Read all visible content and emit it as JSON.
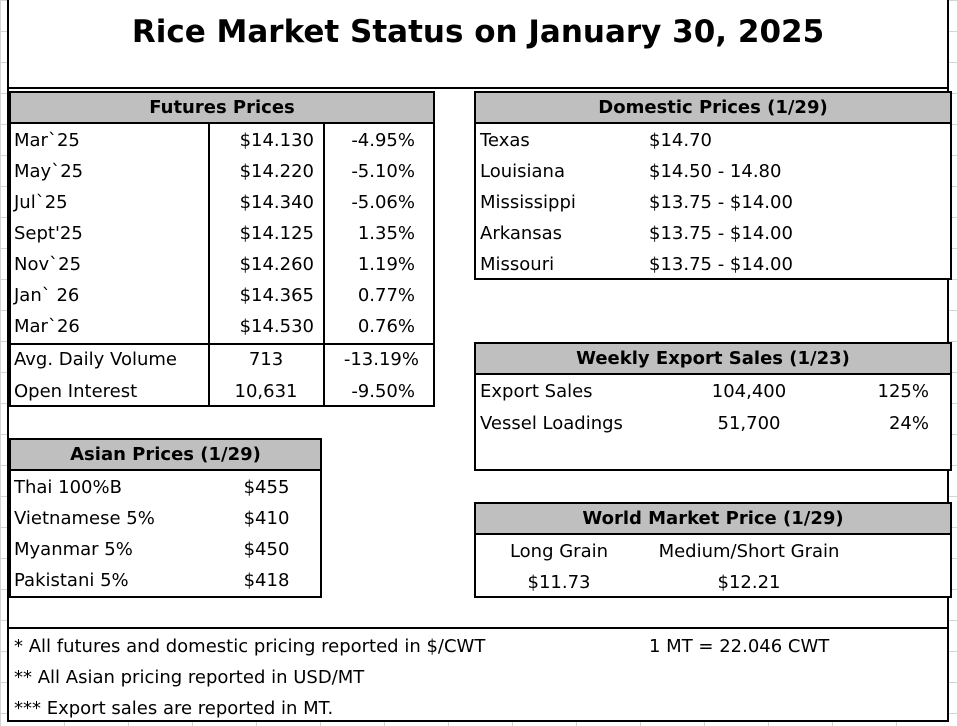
{
  "title": "Rice Market Status on January 30, 2025",
  "futures": {
    "header": "Futures Prices",
    "rows": [
      {
        "month": "Mar`25",
        "price": "$14.130",
        "change": "-4.95%"
      },
      {
        "month": "May`25",
        "price": "$14.220",
        "change": "-5.10%"
      },
      {
        "month": "Jul`25",
        "price": "$14.340",
        "change": "-5.06%"
      },
      {
        "month": "Sept'25",
        "price": "$14.125",
        "change": "1.35%"
      },
      {
        "month": "Nov`25",
        "price": "$14.260",
        "change": "1.19%"
      },
      {
        "month": "Jan` 26",
        "price": "$14.365",
        "change": "0.77%"
      },
      {
        "month": "Mar`26",
        "price": "$14.530",
        "change": "0.76%"
      }
    ],
    "volume": {
      "label": "Avg. Daily Volume",
      "value": "713",
      "change": "-13.19%"
    },
    "open_interest": {
      "label": "Open Interest",
      "value": "10,631",
      "change": "-9.50%"
    }
  },
  "domestic": {
    "header": "Domestic Prices (1/29)",
    "rows": [
      {
        "state": "Texas",
        "price": "$14.70"
      },
      {
        "state": "Louisiana",
        "price": "$14.50 - 14.80"
      },
      {
        "state": "Mississippi",
        "price": "$13.75 - $14.00"
      },
      {
        "state": "Arkansas",
        "price": "$13.75 - $14.00"
      },
      {
        "state": "Missouri",
        "price": "$13.75 - $14.00"
      }
    ]
  },
  "export": {
    "header": "Weekly Export Sales (1/23)",
    "rows": [
      {
        "label": "Export Sales",
        "value": "104,400",
        "pct": "125%"
      },
      {
        "label": "Vessel Loadings",
        "value": "51,700",
        "pct": "24%"
      }
    ]
  },
  "asian": {
    "header": "Asian Prices (1/29)",
    "rows": [
      {
        "origin": "Thai 100%B",
        "price": "$455"
      },
      {
        "origin": "Vietnamese 5%",
        "price": "$410"
      },
      {
        "origin": "Myanmar 5%",
        "price": "$450"
      },
      {
        "origin": "Pakistani 5%",
        "price": "$418"
      }
    ]
  },
  "world": {
    "header": "World Market Price (1/29)",
    "long_label": "Long Grain",
    "medium_label": "Medium/Short Grain",
    "long_value": "$11.73",
    "medium_value": "$12.21"
  },
  "notes": {
    "note1": "* All futures and domestic pricing reported in $/CWT",
    "conversion": "1 MT = 22.046 CWT",
    "note2": "** All Asian pricing reported in USD/MT",
    "note3": "*** Export sales are reported in MT."
  }
}
